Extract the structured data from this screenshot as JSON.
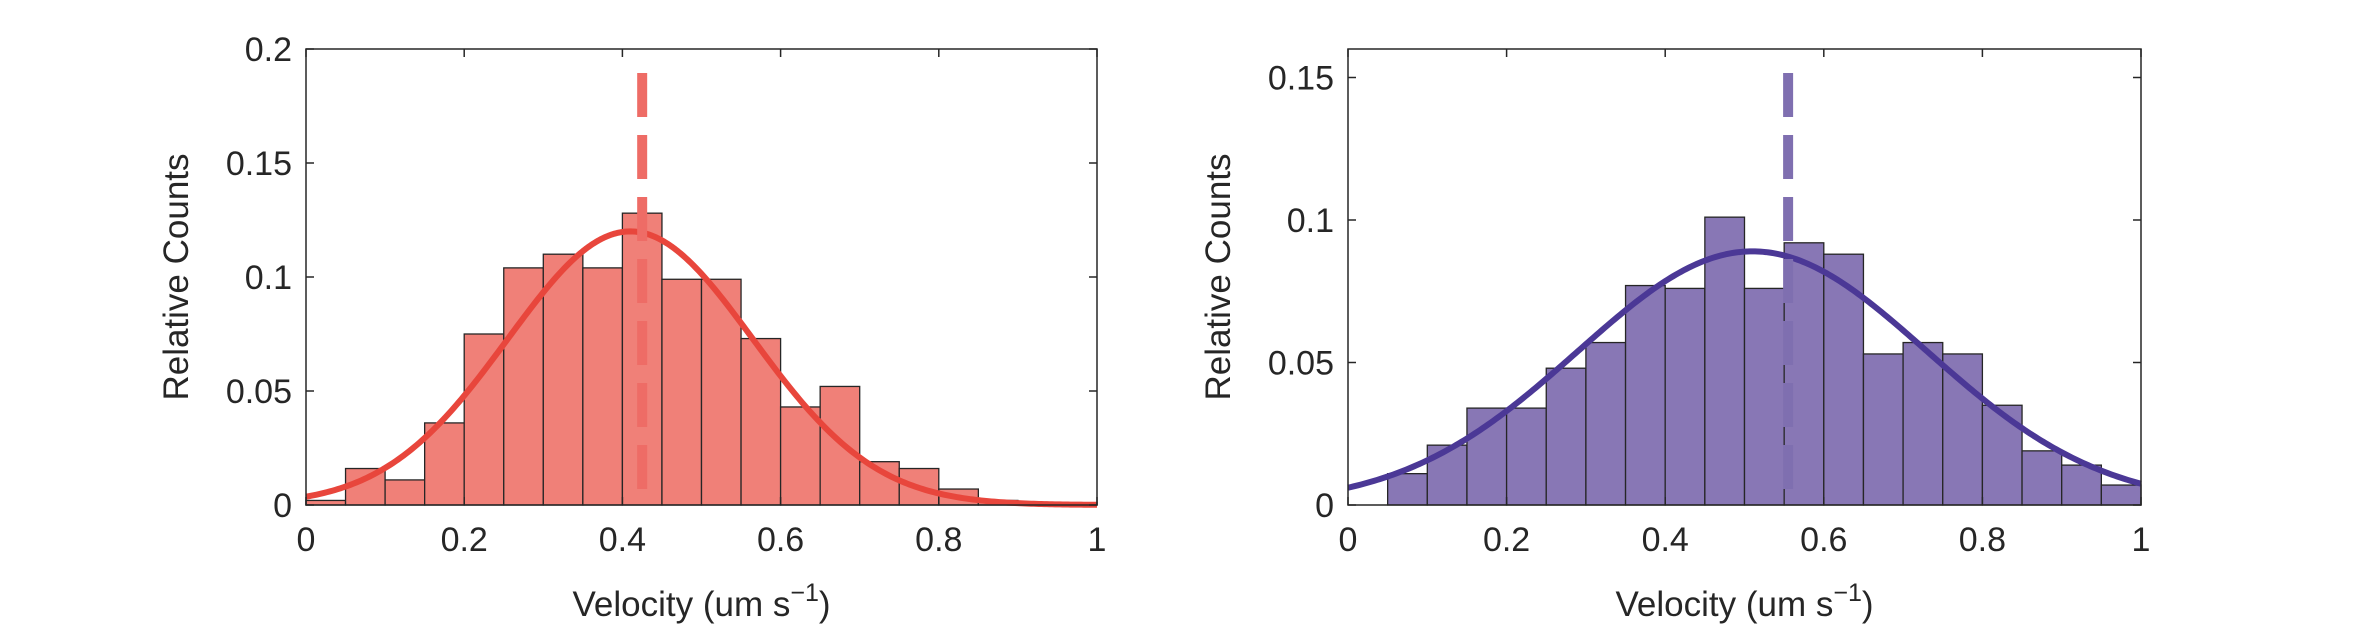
{
  "chart_data": [
    {
      "type": "bar",
      "xlabel": "Velocity (um s",
      "xlabel_sup": "−1",
      "xlabel_close": ")",
      "ylabel": "Relative Counts",
      "xlim": [
        0,
        1
      ],
      "ylim": [
        0,
        0.2
      ],
      "xticks": [
        0,
        0.2,
        0.4,
        0.6,
        0.8,
        1
      ],
      "xtick_labels": [
        "0",
        "0.2",
        "0.4",
        "0.6",
        "0.8",
        "1"
      ],
      "yticks": [
        0,
        0.05,
        0.1,
        0.15,
        0.2
      ],
      "ytick_labels": [
        "0",
        "0.05",
        "0.1",
        "0.15",
        "0.2"
      ],
      "grid": false,
      "bin_edges": [
        0,
        0.05,
        0.1,
        0.15,
        0.2,
        0.25,
        0.3,
        0.35,
        0.4,
        0.45,
        0.5,
        0.55,
        0.6,
        0.65,
        0.7,
        0.75,
        0.8,
        0.85,
        0.9,
        0.95,
        1.0
      ],
      "values": [
        0.002,
        0.016,
        0.011,
        0.036,
        0.075,
        0.104,
        0.11,
        0.104,
        0.128,
        0.099,
        0.099,
        0.073,
        0.043,
        0.052,
        0.019,
        0.016,
        0.007,
        0.002,
        0.001,
        0.001
      ],
      "fit": {
        "type": "normal",
        "peak": 0.12,
        "mean": 0.41,
        "sd": 0.155
      },
      "mean_line_x": 0.425,
      "colors": {
        "bar_fill": "#f08078",
        "bar_edge": "#262626",
        "fit": "#e8463c",
        "mean_line": "#ee6c66"
      }
    },
    {
      "type": "bar",
      "xlabel": "Velocity (um s",
      "xlabel_sup": "−1",
      "xlabel_close": ")",
      "ylabel": "Relative Counts",
      "xlim": [
        0,
        1
      ],
      "ylim": [
        0,
        0.16
      ],
      "xticks": [
        0,
        0.2,
        0.4,
        0.6,
        0.8,
        1
      ],
      "xtick_labels": [
        "0",
        "0.2",
        "0.4",
        "0.6",
        "0.8",
        "1"
      ],
      "yticks": [
        0,
        0.05,
        0.1,
        0.15
      ],
      "ytick_labels": [
        "0",
        "0.05",
        "0.1",
        "0.15"
      ],
      "grid": false,
      "bin_edges": [
        0,
        0.05,
        0.1,
        0.15,
        0.2,
        0.25,
        0.3,
        0.35,
        0.4,
        0.45,
        0.5,
        0.55,
        0.6,
        0.65,
        0.7,
        0.75,
        0.8,
        0.85,
        0.9,
        0.95,
        1.0
      ],
      "values": [
        0.0,
        0.011,
        0.021,
        0.034,
        0.034,
        0.048,
        0.057,
        0.077,
        0.076,
        0.101,
        0.076,
        0.092,
        0.088,
        0.053,
        0.057,
        0.053,
        0.035,
        0.019,
        0.014,
        0.007
      ],
      "fit": {
        "type": "normal",
        "peak": 0.089,
        "mean": 0.51,
        "sd": 0.22
      },
      "mean_line_x": 0.555,
      "colors": {
        "bar_fill": "#8877b5",
        "bar_edge": "#262626",
        "fit": "#4b3896",
        "mean_line": "#7f6fb0"
      }
    }
  ]
}
